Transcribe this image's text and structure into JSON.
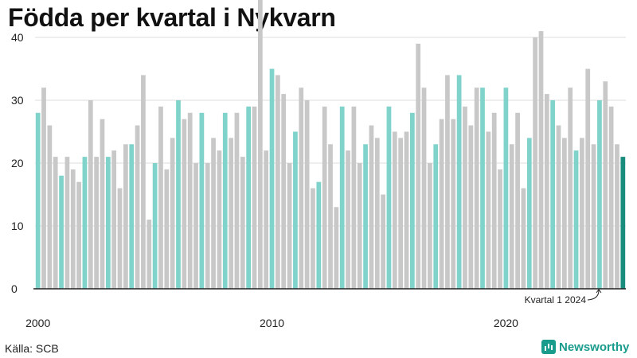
{
  "title": "Födda per kvartal i Nykvarn",
  "source": "Källa: SCB",
  "brand": "Newsworthy",
  "annotation": "Kvartal 1 2024",
  "colors": {
    "highlight": "#80d3cb",
    "normal": "#c8c8c8",
    "latest": "#1a8c7e",
    "axis": "#222222",
    "grid": "#dddddd",
    "text": "#222222"
  },
  "chart_data": {
    "type": "bar",
    "title": "Födda per kvartal i Nykvarn",
    "xlabel": "",
    "ylabel": "",
    "ylim": [
      0,
      48
    ],
    "yticks": [
      0,
      10,
      20,
      30,
      40
    ],
    "xtick_labels": [
      {
        "label": "2000",
        "index": 0
      },
      {
        "label": "2010",
        "index": 40
      },
      {
        "label": "2020",
        "index": 80
      }
    ],
    "start_year": 2000,
    "start_quarter": 1,
    "highlight_quarter": 1,
    "values": [
      28,
      32,
      26,
      21,
      18,
      21,
      19,
      17,
      21,
      30,
      21,
      27,
      21,
      22,
      16,
      23,
      23,
      26,
      34,
      11,
      20,
      29,
      19,
      24,
      30,
      27,
      28,
      20,
      28,
      20,
      24,
      22,
      28,
      24,
      28,
      21,
      29,
      29,
      47,
      22,
      35,
      34,
      31,
      20,
      25,
      32,
      30,
      16,
      17,
      29,
      23,
      13,
      29,
      22,
      29,
      20,
      23,
      26,
      24,
      15,
      29,
      25,
      24,
      25,
      28,
      39,
      32,
      20,
      23,
      27,
      34,
      27,
      34,
      29,
      26,
      32,
      32,
      25,
      28,
      19,
      32,
      23,
      28,
      16,
      24,
      40,
      41,
      31,
      30,
      26,
      24,
      32,
      22,
      24,
      35,
      23,
      30,
      33,
      29,
      23,
      21
    ]
  }
}
